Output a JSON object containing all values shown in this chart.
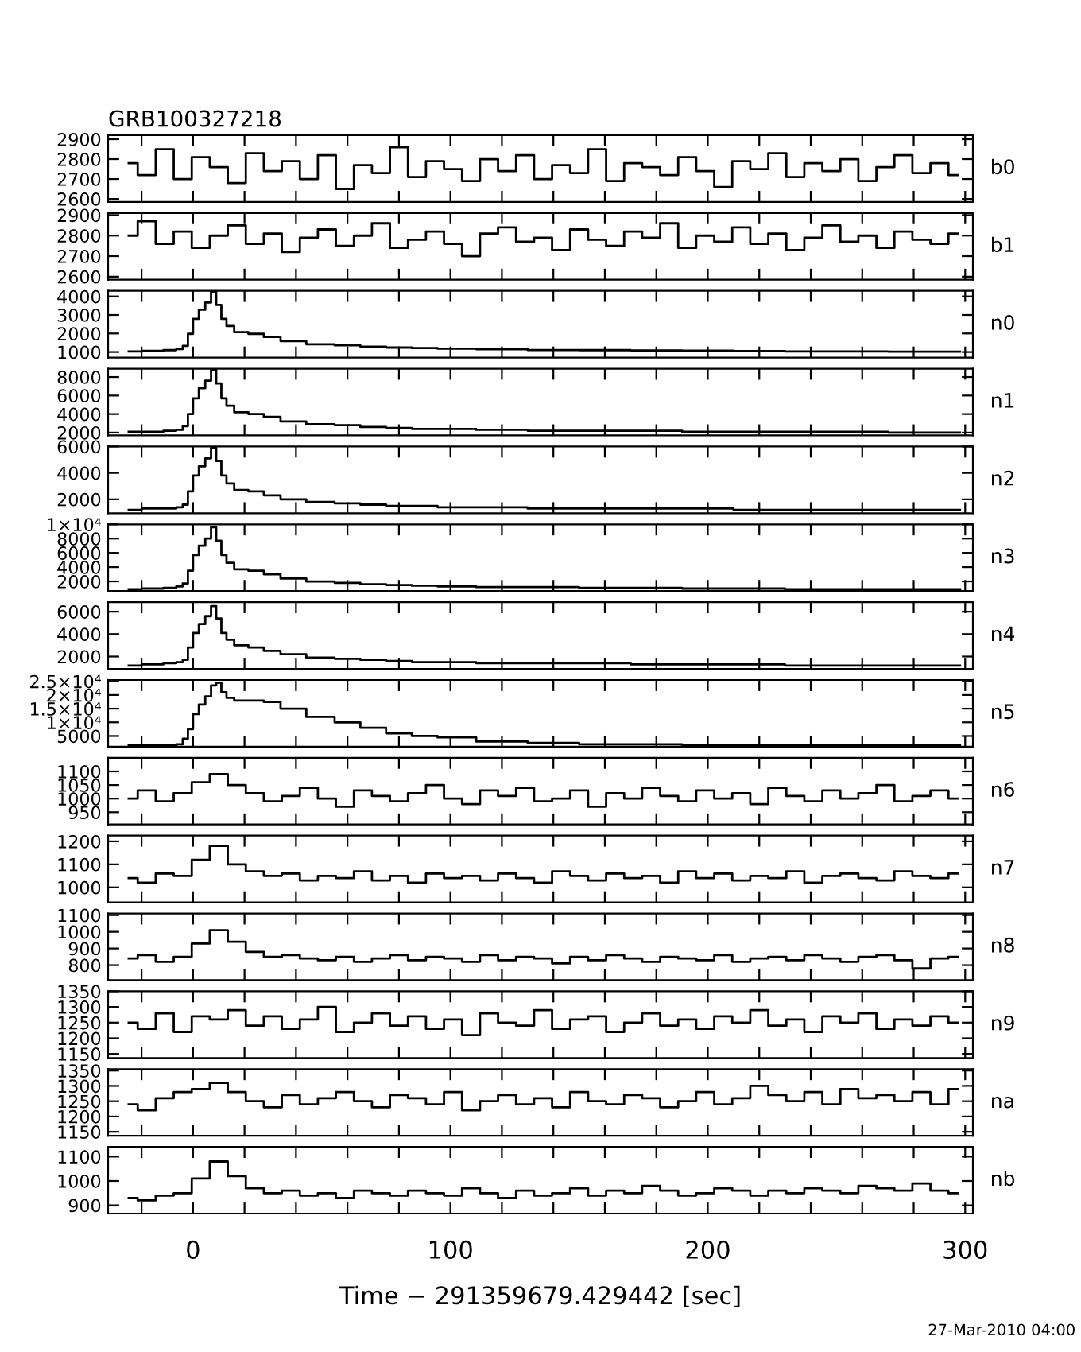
{
  "chart_data": [
    {
      "type": "step",
      "title": "GRB100327218",
      "annotations": [
        "b0"
      ],
      "color": "#000000",
      "xlim": [
        -33,
        303
      ],
      "ylim": [
        2585,
        2920
      ],
      "yticks": [
        2600,
        2700,
        2800,
        2900
      ],
      "tick_labels": "y",
      "xticks": [
        -20,
        0,
        20,
        40,
        60,
        80,
        100,
        120,
        140,
        160,
        180,
        200,
        220,
        240,
        260,
        280,
        300
      ],
      "x": [
        -25,
        -18,
        -11,
        -4,
        3,
        10,
        17,
        24,
        31,
        38,
        45,
        52,
        59,
        66,
        73,
        80,
        87,
        94,
        101,
        108,
        115,
        122,
        129,
        136,
        143,
        150,
        157,
        164,
        171,
        178,
        185,
        192,
        199,
        206,
        213,
        220,
        227,
        234,
        241,
        248,
        255,
        262,
        269,
        276,
        283,
        290,
        297
      ],
      "values": [
        2780,
        2720,
        2850,
        2700,
        2810,
        2760,
        2680,
        2830,
        2740,
        2790,
        2700,
        2820,
        2650,
        2770,
        2730,
        2860,
        2710,
        2790,
        2750,
        2690,
        2800,
        2740,
        2820,
        2700,
        2770,
        2730,
        2850,
        2690,
        2780,
        2760,
        2720,
        2810,
        2740,
        2660,
        2790,
        2750,
        2830,
        2710,
        2780,
        2740,
        2800,
        2690,
        2760,
        2820,
        2730,
        2780,
        2720
      ]
    },
    {
      "type": "step",
      "annotations": [
        "b1"
      ],
      "color": "#000000",
      "xlim": [
        -33,
        303
      ],
      "ylim": [
        2585,
        2910
      ],
      "yticks": [
        2600,
        2700,
        2800,
        2900
      ],
      "tick_labels": "y",
      "xticks": [
        -20,
        0,
        20,
        40,
        60,
        80,
        100,
        120,
        140,
        160,
        180,
        200,
        220,
        240,
        260,
        280,
        300
      ],
      "x": [
        -25,
        -18,
        -11,
        -4,
        3,
        10,
        17,
        24,
        31,
        38,
        45,
        52,
        59,
        66,
        73,
        80,
        87,
        94,
        101,
        108,
        115,
        122,
        129,
        136,
        143,
        150,
        157,
        164,
        171,
        178,
        185,
        192,
        199,
        206,
        213,
        220,
        227,
        234,
        241,
        248,
        255,
        262,
        269,
        276,
        283,
        290,
        297
      ],
      "values": [
        2800,
        2870,
        2760,
        2820,
        2740,
        2800,
        2850,
        2760,
        2810,
        2720,
        2790,
        2830,
        2750,
        2800,
        2860,
        2740,
        2780,
        2820,
        2760,
        2700,
        2810,
        2840,
        2770,
        2790,
        2730,
        2830,
        2780,
        2750,
        2820,
        2790,
        2860,
        2740,
        2800,
        2770,
        2840,
        2760,
        2810,
        2730,
        2790,
        2850,
        2770,
        2800,
        2740,
        2820,
        2780,
        2760,
        2810
      ]
    },
    {
      "type": "step",
      "annotations": [
        "n0"
      ],
      "color": "#000000",
      "xlim": [
        -33,
        303
      ],
      "ylim": [
        700,
        4300
      ],
      "yticks": [
        1000,
        2000,
        3000,
        4000
      ],
      "tick_labels": "y",
      "xticks": [
        -20,
        0,
        20,
        40,
        60,
        80,
        100,
        120,
        140,
        160,
        180,
        200,
        220,
        240,
        260,
        280,
        300
      ],
      "x": [
        -25,
        -15,
        -8,
        -5,
        -3,
        -1,
        1,
        3.5,
        6,
        8,
        10,
        12,
        14,
        18,
        25,
        30,
        38,
        50,
        60,
        70,
        80,
        90,
        100,
        120,
        140,
        160,
        180,
        200,
        220,
        240,
        260,
        280,
        298
      ],
      "values": [
        1030,
        1060,
        1100,
        1160,
        1330,
        1980,
        2790,
        3280,
        3670,
        4250,
        3540,
        2790,
        2400,
        2070,
        1980,
        1810,
        1590,
        1420,
        1360,
        1290,
        1240,
        1210,
        1180,
        1150,
        1110,
        1100,
        1080,
        1070,
        1050,
        1030,
        1030,
        1020,
        1020
      ]
    },
    {
      "type": "step",
      "annotations": [
        "n1"
      ],
      "color": "#000000",
      "xlim": [
        -33,
        303
      ],
      "ylim": [
        1700,
        8900
      ],
      "yticks": [
        2000,
        4000,
        6000,
        8000
      ],
      "tick_labels": "y",
      "xticks": [
        -20,
        0,
        20,
        40,
        60,
        80,
        100,
        120,
        140,
        160,
        180,
        200,
        220,
        240,
        260,
        280,
        300
      ],
      "x": [
        -25,
        -15,
        -8,
        -5,
        -3,
        -1,
        1,
        3.5,
        6,
        8,
        10,
        12,
        14,
        18,
        25,
        30,
        38,
        50,
        60,
        70,
        80,
        90,
        100,
        120,
        140,
        160,
        180,
        200,
        220,
        240,
        260,
        280,
        298
      ],
      "values": [
        2100,
        2100,
        2200,
        2300,
        2700,
        4000,
        5700,
        6800,
        7600,
        8800,
        7300,
        5700,
        4900,
        4200,
        4000,
        3700,
        3200,
        2900,
        2800,
        2600,
        2500,
        2400,
        2400,
        2300,
        2200,
        2200,
        2200,
        2100,
        2100,
        2100,
        2100,
        2000,
        2000
      ]
    },
    {
      "type": "step",
      "annotations": [
        "n2"
      ],
      "color": "#000000",
      "xlim": [
        -33,
        303
      ],
      "ylim": [
        950,
        6000
      ],
      "yticks": [
        2000,
        4000,
        6000
      ],
      "tick_labels": "y",
      "xticks": [
        -20,
        0,
        20,
        40,
        60,
        80,
        100,
        120,
        140,
        160,
        180,
        200,
        220,
        240,
        260,
        280,
        300
      ],
      "x": [
        -25,
        -15,
        -8,
        -5,
        -3,
        -1,
        1,
        3.5,
        6,
        8,
        10,
        12,
        14,
        18,
        25,
        30,
        38,
        50,
        60,
        70,
        80,
        90,
        100,
        120,
        140,
        160,
        180,
        200,
        220,
        240,
        260,
        280,
        298
      ],
      "values": [
        1200,
        1300,
        1300,
        1400,
        1600,
        2600,
        3800,
        4500,
        5100,
        5900,
        4900,
        3800,
        3200,
        2700,
        2600,
        2300,
        2000,
        1800,
        1700,
        1600,
        1500,
        1500,
        1400,
        1400,
        1300,
        1300,
        1300,
        1300,
        1200,
        1200,
        1200,
        1200,
        1200
      ]
    },
    {
      "type": "step",
      "annotations": [
        "n3"
      ],
      "color": "#000000",
      "xlim": [
        -33,
        303
      ],
      "ylim": [
        650,
        10000
      ],
      "yticks": [
        2000,
        4000,
        6000,
        8000,
        {
          "value": 10000,
          "label": "1×10⁴"
        }
      ],
      "tick_labels": "y",
      "xticks": [
        -20,
        0,
        20,
        40,
        60,
        80,
        100,
        120,
        140,
        160,
        180,
        200,
        220,
        240,
        260,
        280,
        300
      ],
      "x": [
        -25,
        -15,
        -8,
        -5,
        -3,
        -1,
        1,
        3.5,
        6,
        8,
        10,
        12,
        14,
        18,
        25,
        30,
        38,
        50,
        60,
        70,
        80,
        90,
        100,
        120,
        140,
        160,
        180,
        200,
        220,
        240,
        260,
        280,
        298
      ],
      "values": [
        900,
        1000,
        1100,
        1300,
        1700,
        3500,
        5700,
        7000,
        8000,
        9600,
        7700,
        5700,
        4600,
        3700,
        3500,
        3000,
        2400,
        2000,
        1800,
        1600,
        1500,
        1400,
        1300,
        1200,
        1200,
        1100,
        1100,
        1000,
        1000,
        900,
        900,
        900,
        900
      ]
    },
    {
      "type": "step",
      "annotations": [
        "n4"
      ],
      "color": "#000000",
      "xlim": [
        -33,
        303
      ],
      "ylim": [
        900,
        6850
      ],
      "yticks": [
        2000,
        4000,
        6000
      ],
      "tick_labels": "y",
      "xticks": [
        -20,
        0,
        20,
        40,
        60,
        80,
        100,
        120,
        140,
        160,
        180,
        200,
        220,
        240,
        260,
        280,
        300
      ],
      "x": [
        -25,
        -15,
        -8,
        -5,
        -3,
        -1,
        1,
        3.5,
        6,
        8,
        10,
        12,
        14,
        18,
        25,
        30,
        38,
        50,
        60,
        70,
        80,
        90,
        100,
        120,
        140,
        160,
        180,
        200,
        220,
        240,
        260,
        280,
        298
      ],
      "values": [
        1200,
        1300,
        1400,
        1500,
        1700,
        2800,
        4100,
        4900,
        5600,
        6500,
        5400,
        4100,
        3500,
        3000,
        2800,
        2500,
        2200,
        1900,
        1800,
        1700,
        1600,
        1500,
        1500,
        1400,
        1400,
        1400,
        1300,
        1300,
        1300,
        1200,
        1200,
        1200,
        1200
      ]
    },
    {
      "type": "step",
      "annotations": [
        "n5"
      ],
      "color": "#000000",
      "xlim": [
        -33,
        303
      ],
      "ylim": [
        1100,
        25500
      ],
      "yticks": [
        5000,
        {
          "value": 10000,
          "label": "1×10⁴"
        },
        {
          "value": 15000,
          "label": "1.5×10⁴"
        },
        {
          "value": 20000,
          "label": "2×10⁴"
        },
        {
          "value": 25000,
          "label": "2.5×10⁴"
        }
      ],
      "tick_labels": "y",
      "xticks": [
        -20,
        0,
        20,
        40,
        60,
        80,
        100,
        120,
        140,
        160,
        180,
        200,
        220,
        240,
        260,
        280,
        300
      ],
      "x": [
        -25,
        -15,
        -8,
        -5,
        -3,
        -1,
        1,
        3.5,
        6,
        8,
        10,
        12,
        14,
        18,
        25,
        30,
        38,
        50,
        60,
        70,
        80,
        90,
        100,
        120,
        140,
        160,
        180,
        200,
        220,
        240,
        260,
        280,
        298
      ],
      "values": [
        1500,
        1500,
        1500,
        2000,
        4000,
        7500,
        13000,
        16500,
        19500,
        23500,
        24500,
        21000,
        19000,
        18000,
        18000,
        17500,
        15000,
        12000,
        10000,
        8000,
        6000,
        5000,
        4500,
        3000,
        2500,
        2000,
        2000,
        1500,
        1500,
        1500,
        1500,
        1500,
        1500
      ]
    },
    {
      "type": "step",
      "annotations": [
        "n6"
      ],
      "color": "#000000",
      "xlim": [
        -33,
        303
      ],
      "ylim": [
        905,
        1150
      ],
      "yticks": [
        950,
        1000,
        1050,
        1100
      ],
      "tick_labels": "y",
      "xticks": [
        -20,
        0,
        20,
        40,
        60,
        80,
        100,
        120,
        140,
        160,
        180,
        200,
        220,
        240,
        260,
        280,
        300
      ],
      "x": [
        -25,
        -18,
        -11,
        -4,
        3,
        10,
        17,
        24,
        31,
        38,
        45,
        52,
        59,
        66,
        73,
        80,
        87,
        94,
        101,
        108,
        115,
        122,
        129,
        136,
        143,
        150,
        157,
        164,
        171,
        178,
        185,
        192,
        199,
        206,
        213,
        220,
        227,
        234,
        241,
        248,
        255,
        262,
        269,
        276,
        283,
        290,
        297
      ],
      "values": [
        1000,
        1030,
        990,
        1020,
        1060,
        1090,
        1050,
        1020,
        990,
        1010,
        1040,
        1000,
        970,
        1030,
        1010,
        990,
        1020,
        1050,
        1000,
        980,
        1030,
        1010,
        1040,
        990,
        1000,
        1030,
        970,
        1020,
        1000,
        1040,
        1010,
        990,
        1030,
        1000,
        1020,
        980,
        1040,
        1010,
        990,
        1030,
        1000,
        1020,
        1050,
        990,
        1010,
        1030,
        1000
      ]
    },
    {
      "type": "step",
      "annotations": [
        "n7"
      ],
      "color": "#000000",
      "xlim": [
        -33,
        303
      ],
      "ylim": [
        935,
        1225
      ],
      "yticks": [
        1000,
        1100,
        1200
      ],
      "tick_labels": "y",
      "xticks": [
        -20,
        0,
        20,
        40,
        60,
        80,
        100,
        120,
        140,
        160,
        180,
        200,
        220,
        240,
        260,
        280,
        300
      ],
      "x": [
        -25,
        -18,
        -11,
        -4,
        3,
        10,
        17,
        24,
        31,
        38,
        45,
        52,
        59,
        66,
        73,
        80,
        87,
        94,
        101,
        108,
        115,
        122,
        129,
        136,
        143,
        150,
        157,
        164,
        171,
        178,
        185,
        192,
        199,
        206,
        213,
        220,
        227,
        234,
        241,
        248,
        255,
        262,
        269,
        276,
        283,
        290,
        297
      ],
      "values": [
        1040,
        1020,
        1060,
        1050,
        1120,
        1180,
        1100,
        1070,
        1050,
        1060,
        1030,
        1050,
        1040,
        1070,
        1030,
        1050,
        1020,
        1060,
        1040,
        1050,
        1030,
        1060,
        1040,
        1020,
        1070,
        1050,
        1030,
        1060,
        1040,
        1050,
        1020,
        1070,
        1040,
        1060,
        1030,
        1050,
        1040,
        1070,
        1020,
        1050,
        1060,
        1040,
        1030,
        1070,
        1050,
        1040,
        1060
      ]
    },
    {
      "type": "step",
      "annotations": [
        "n8"
      ],
      "color": "#000000",
      "xlim": [
        -33,
        303
      ],
      "ylim": [
        710,
        1110
      ],
      "yticks": [
        800,
        900,
        1000,
        1100
      ],
      "tick_labels": "y",
      "xticks": [
        -20,
        0,
        20,
        40,
        60,
        80,
        100,
        120,
        140,
        160,
        180,
        200,
        220,
        240,
        260,
        280,
        300
      ],
      "x": [
        -25,
        -18,
        -11,
        -4,
        3,
        10,
        17,
        24,
        31,
        38,
        45,
        52,
        59,
        66,
        73,
        80,
        87,
        94,
        101,
        108,
        115,
        122,
        129,
        136,
        143,
        150,
        157,
        164,
        171,
        178,
        185,
        192,
        199,
        206,
        213,
        220,
        227,
        234,
        241,
        248,
        255,
        262,
        269,
        276,
        283,
        290,
        297
      ],
      "values": [
        840,
        860,
        820,
        850,
        930,
        1010,
        940,
        880,
        850,
        860,
        840,
        830,
        850,
        820,
        840,
        860,
        830,
        850,
        840,
        820,
        860,
        830,
        850,
        840,
        810,
        850,
        830,
        860,
        840,
        820,
        850,
        840,
        830,
        860,
        820,
        840,
        850,
        830,
        860,
        840,
        820,
        850,
        860,
        830,
        780,
        840,
        850
      ]
    },
    {
      "type": "step",
      "annotations": [
        "n9"
      ],
      "color": "#000000",
      "xlim": [
        -33,
        303
      ],
      "ylim": [
        1137,
        1350
      ],
      "yticks": [
        1150,
        1200,
        1250,
        1300,
        1350
      ],
      "tick_labels": "y",
      "xticks": [
        -20,
        0,
        20,
        40,
        60,
        80,
        100,
        120,
        140,
        160,
        180,
        200,
        220,
        240,
        260,
        280,
        300
      ],
      "x": [
        -25,
        -18,
        -11,
        -4,
        3,
        10,
        17,
        24,
        31,
        38,
        45,
        52,
        59,
        66,
        73,
        80,
        87,
        94,
        101,
        108,
        115,
        122,
        129,
        136,
        143,
        150,
        157,
        164,
        171,
        178,
        185,
        192,
        199,
        206,
        213,
        220,
        227,
        234,
        241,
        248,
        255,
        262,
        269,
        276,
        283,
        290,
        297
      ],
      "values": [
        1250,
        1230,
        1280,
        1220,
        1270,
        1260,
        1290,
        1240,
        1270,
        1230,
        1260,
        1300,
        1220,
        1250,
        1280,
        1240,
        1270,
        1230,
        1260,
        1210,
        1280,
        1250,
        1240,
        1290,
        1230,
        1260,
        1270,
        1220,
        1250,
        1280,
        1240,
        1260,
        1230,
        1270,
        1250,
        1290,
        1240,
        1260,
        1220,
        1270,
        1250,
        1280,
        1230,
        1260,
        1240,
        1270,
        1250
      ]
    },
    {
      "type": "step",
      "annotations": [
        "na"
      ],
      "color": "#000000",
      "xlim": [
        -33,
        303
      ],
      "ylim": [
        1137,
        1355
      ],
      "yticks": [
        1150,
        1200,
        1250,
        1300,
        1350
      ],
      "tick_labels": "y",
      "xticks": [
        -20,
        0,
        20,
        40,
        60,
        80,
        100,
        120,
        140,
        160,
        180,
        200,
        220,
        240,
        260,
        280,
        300
      ],
      "x": [
        -25,
        -18,
        -11,
        -4,
        3,
        10,
        17,
        24,
        31,
        38,
        45,
        52,
        59,
        66,
        73,
        80,
        87,
        94,
        101,
        108,
        115,
        122,
        129,
        136,
        143,
        150,
        157,
        164,
        171,
        178,
        185,
        192,
        199,
        206,
        213,
        220,
        227,
        234,
        241,
        248,
        255,
        262,
        269,
        276,
        283,
        290,
        297
      ],
      "values": [
        1240,
        1220,
        1260,
        1280,
        1290,
        1310,
        1280,
        1250,
        1230,
        1270,
        1240,
        1260,
        1280,
        1250,
        1230,
        1270,
        1260,
        1240,
        1280,
        1220,
        1250,
        1270,
        1240,
        1260,
        1230,
        1280,
        1250,
        1240,
        1270,
        1260,
        1230,
        1250,
        1280,
        1240,
        1260,
        1300,
        1270,
        1250,
        1280,
        1240,
        1290,
        1260,
        1270,
        1250,
        1280,
        1240,
        1290
      ]
    },
    {
      "type": "step",
      "annotations": [
        "nb",
        "27-Mar-2010 04:00"
      ],
      "xlabel": "Time − 291359679.429442 [sec]",
      "color": "#000000",
      "xlim": [
        -33,
        303
      ],
      "ylim": [
        866,
        1140
      ],
      "yticks": [
        900,
        1000,
        1100
      ],
      "xticks": [
        {
          "value": -20,
          "label": null
        },
        0,
        {
          "value": 20,
          "label": null
        },
        {
          "value": 40,
          "label": null
        },
        {
          "value": 60,
          "label": null
        },
        {
          "value": 80,
          "label": null
        },
        100,
        {
          "value": 120,
          "label": null
        },
        {
          "value": 140,
          "label": null
        },
        {
          "value": 160,
          "label": null
        },
        {
          "value": 180,
          "label": null
        },
        200,
        {
          "value": 220,
          "label": null
        },
        {
          "value": 240,
          "label": null
        },
        {
          "value": 260,
          "label": null
        },
        {
          "value": 280,
          "label": null
        },
        300
      ],
      "x": [
        -25,
        -18,
        -11,
        -4,
        3,
        10,
        17,
        24,
        31,
        38,
        45,
        52,
        59,
        66,
        73,
        80,
        87,
        94,
        101,
        108,
        115,
        122,
        129,
        136,
        143,
        150,
        157,
        164,
        171,
        178,
        185,
        192,
        199,
        206,
        213,
        220,
        227,
        234,
        241,
        248,
        255,
        262,
        269,
        276,
        283,
        290,
        297
      ],
      "values": [
        930,
        920,
        940,
        950,
        1010,
        1080,
        1020,
        970,
        950,
        960,
        940,
        950,
        930,
        960,
        950,
        940,
        960,
        950,
        940,
        970,
        950,
        930,
        960,
        940,
        950,
        970,
        940,
        960,
        950,
        980,
        960,
        940,
        950,
        970,
        960,
        940,
        960,
        950,
        970,
        960,
        950,
        980,
        970,
        960,
        990,
        960,
        950
      ]
    }
  ]
}
